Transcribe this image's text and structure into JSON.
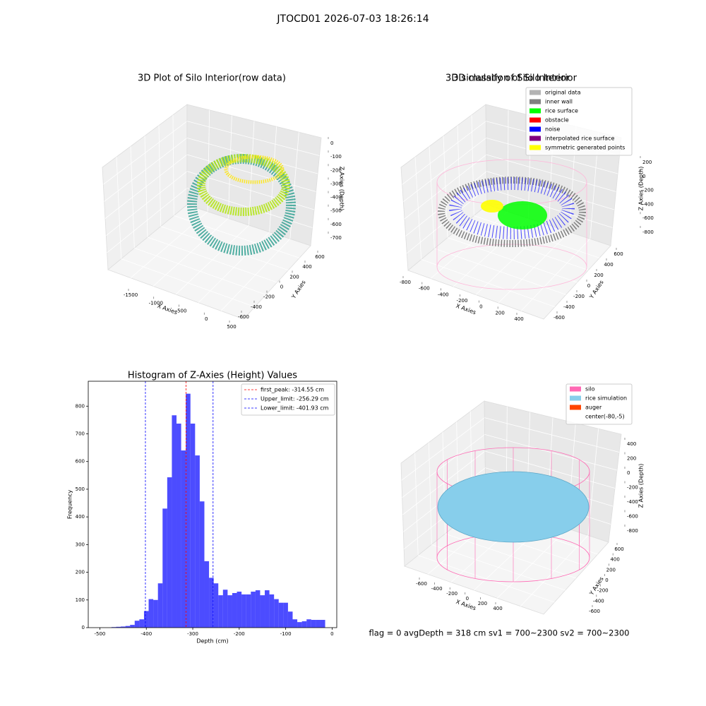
{
  "title": "JTOCD01 2026-07-03 18:26:14",
  "footer": "flag = 0     avgDepth = 318 cm  sv1 = 700~2300  sv2 = 700~2300",
  "chart_data": [
    {
      "type": "scatter3d",
      "title": "3D Plot of Silo Interior(row data)",
      "xlabel": "X Axies",
      "ylabel": "Y Axies",
      "zlabel": "Z Axies (Depth)",
      "xticks": [
        -1500,
        -1000,
        -500,
        0,
        500
      ],
      "yticks": [
        -600,
        -400,
        -200,
        0,
        200,
        400,
        600
      ],
      "zticks": [
        0,
        -100,
        -200,
        -300,
        -400,
        -500,
        -600,
        -700
      ]
    },
    {
      "type": "scatter3d",
      "title": "3D classify of Silo Interior",
      "xlabel": "X Axies",
      "ylabel": "Y Axies",
      "zlabel": "Z Axies (Depth)",
      "xticks": [
        -800,
        -600,
        -400,
        -200,
        0,
        200,
        400
      ],
      "yticks": [
        -600,
        -400,
        -200,
        0,
        200,
        400,
        600
      ],
      "zticks": [
        200,
        0,
        -200,
        -400,
        -600,
        -800
      ],
      "series": [
        {
          "name": "original data",
          "color": "#b3b3b3"
        },
        {
          "name": "inner wall",
          "color": "#808080"
        },
        {
          "name": "rice surface",
          "color": "#00ff00"
        },
        {
          "name": "obstacle",
          "color": "#ff0000"
        },
        {
          "name": "noise",
          "color": "#0000ff"
        },
        {
          "name": "interpolated rice surface",
          "color": "#800080"
        },
        {
          "name": "symmetric generated points",
          "color": "#ffff00"
        }
      ]
    },
    {
      "type": "histogram",
      "title": "Histogram of Z-Axies (Height) Values",
      "xlabel": "Depth (cm)",
      "ylabel": "Frequency",
      "color": "#0000ff",
      "alpha": 0.7,
      "bins": [
        -475,
        -465,
        -455,
        -445,
        -435,
        -425,
        -415,
        -405,
        -395,
        -385,
        -375,
        -365,
        -355,
        -345,
        -335,
        -325,
        -315,
        -305,
        -295,
        -285,
        -275,
        -265,
        -255,
        -245,
        -235,
        -225,
        -215,
        -205,
        -195,
        -185,
        -175,
        -165,
        -155,
        -145,
        -135,
        -125,
        -115,
        -105,
        -95,
        -85,
        -75,
        -65,
        -55,
        -45,
        -35,
        -25,
        -15
      ],
      "values": [
        2,
        3,
        4,
        6,
        10,
        25,
        30,
        60,
        103,
        100,
        160,
        430,
        543,
        767,
        737,
        640,
        845,
        737,
        622,
        456,
        240,
        180,
        160,
        117,
        137,
        117,
        125,
        130,
        120,
        120,
        130,
        135,
        117,
        135,
        120,
        103,
        90,
        90,
        58,
        30,
        20,
        23,
        30,
        28,
        28,
        28
      ],
      "xlim": [
        -525,
        10
      ],
      "ylim": [
        0,
        890
      ],
      "xticks": [
        -500,
        -400,
        -300,
        -200,
        -100,
        0
      ],
      "yticks": [
        0,
        100,
        200,
        300,
        400,
        500,
        600,
        700,
        800
      ],
      "vlines": [
        {
          "name": "first_peak: -314.55 cm",
          "value": -314.55,
          "color": "#ff0000"
        },
        {
          "name": "Upper_limit: -256.29 cm",
          "value": -256.29,
          "color": "#0000ff"
        },
        {
          "name": "Lower_limit: -401.93 cm",
          "value": -401.93,
          "color": "#0000ff"
        }
      ],
      "legend": "upper right"
    },
    {
      "type": "scatter3d",
      "title": "3D simulation of Silo Interior",
      "xlabel": "X Axies",
      "ylabel": "Y Axies",
      "zlabel": "Z Axies (Depth)",
      "xticks": [
        -600,
        -400,
        -200,
        0,
        200,
        400
      ],
      "yticks": [
        -600,
        -400,
        -200,
        0,
        200,
        400,
        600
      ],
      "zticks": [
        400,
        200,
        0,
        -200,
        -400,
        -600,
        -800
      ],
      "series": [
        {
          "name": "silo",
          "color": "#ff69b4"
        },
        {
          "name": "rice simulation",
          "color": "#87ceeb"
        },
        {
          "name": "auger",
          "color": "#ff4500"
        },
        {
          "name": "center(-80,-5)",
          "color": "#ffffff"
        }
      ]
    }
  ]
}
